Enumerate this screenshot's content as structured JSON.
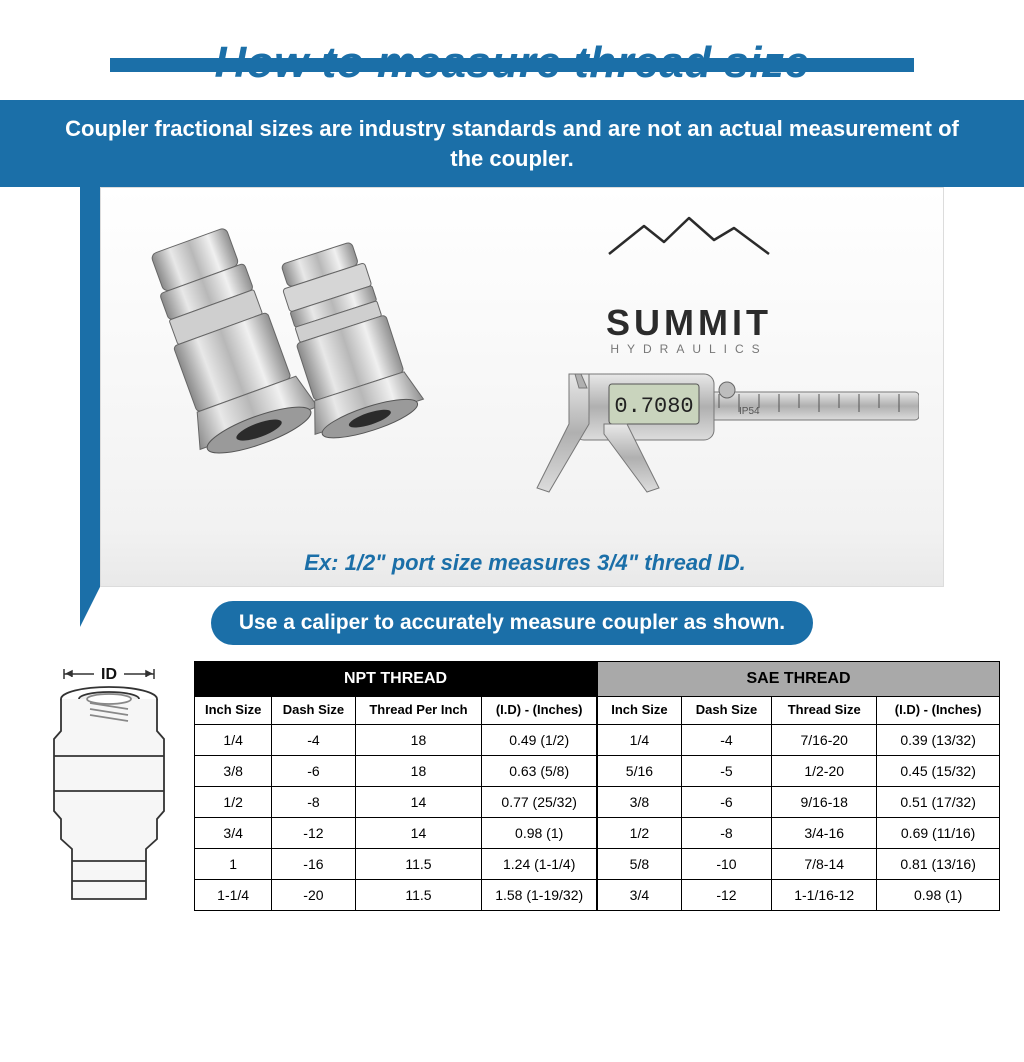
{
  "colors": {
    "brand_blue": "#1b6fa8",
    "white": "#ffffff",
    "black": "#000000",
    "grey_header": "#a9a9a9"
  },
  "title": "How to measure thread size",
  "subtitle": "Coupler fractional sizes are industry standards and are not an actual measurement of the coupler.",
  "brand": {
    "name": "SUMMIT",
    "sub": "HYDRAULICS"
  },
  "caliper_reading": "0.7080",
  "example": "Ex: 1/2\" port size measures 3/4\" thread ID.",
  "pill": "Use a caliper to accurately measure coupler as shown.",
  "id_label": "ID",
  "npt": {
    "title": "NPT THREAD",
    "columns": [
      "Inch Size",
      "Dash Size",
      "Thread Per Inch",
      "(I.D) - (Inches)"
    ],
    "rows": [
      [
        "1/4",
        "-4",
        "18",
        "0.49 (1/2)"
      ],
      [
        "3/8",
        "-6",
        "18",
        "0.63 (5/8)"
      ],
      [
        "1/2",
        "-8",
        "14",
        "0.77 (25/32)"
      ],
      [
        "3/4",
        "-12",
        "14",
        "0.98 (1)"
      ],
      [
        "1",
        "-16",
        "11.5",
        "1.24 (1-1/4)"
      ],
      [
        "1-1/4",
        "-20",
        "11.5",
        "1.58 (1-19/32)"
      ]
    ]
  },
  "sae": {
    "title": "SAE THREAD",
    "columns": [
      "Inch Size",
      "Dash Size",
      "Thread Size",
      "(I.D) - (Inches)"
    ],
    "rows": [
      [
        "1/4",
        "-4",
        "7/16-20",
        "0.39 (13/32)"
      ],
      [
        "5/16",
        "-5",
        "1/2-20",
        "0.45 (15/32)"
      ],
      [
        "3/8",
        "-6",
        "9/16-18",
        "0.51 (17/32)"
      ],
      [
        "1/2",
        "-8",
        "3/4-16",
        "0.69 (11/16)"
      ],
      [
        "5/8",
        "-10",
        "7/8-14",
        "0.81 (13/16)"
      ],
      [
        "3/4",
        "-12",
        "1-1/16-12",
        "0.98 (1)"
      ]
    ]
  }
}
